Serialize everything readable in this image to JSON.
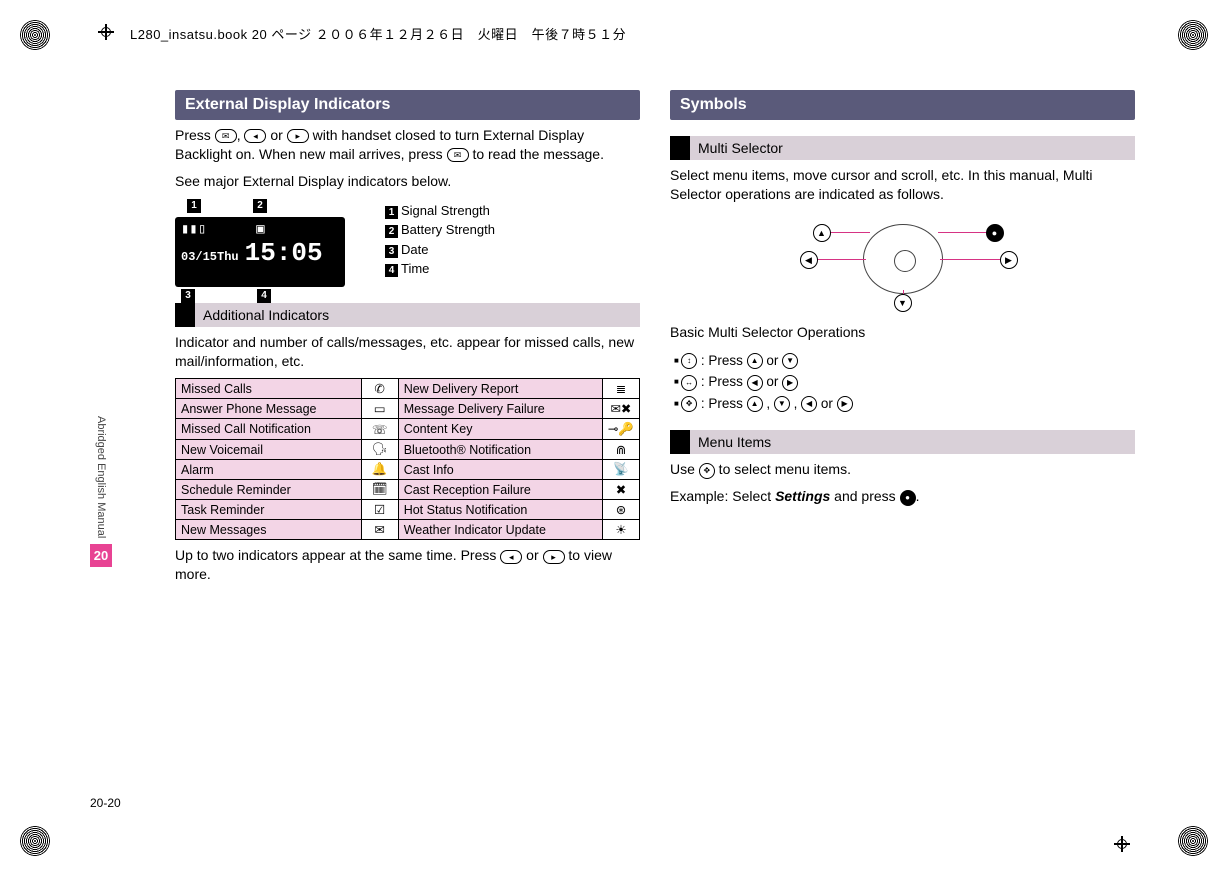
{
  "header_line": "L280_insatsu.book  20 ページ  ２００６年１２月２６日　火曜日　午後７時５１分",
  "side_tab": {
    "label": "Abridged English Manual",
    "chapter": "20"
  },
  "page_number": "20-20",
  "left": {
    "section_title": "External Display Indicators",
    "intro_pre": "Press ",
    "intro_mid1": ", ",
    "intro_mid2": " or ",
    "intro_post": " with handset closed to turn External Display Backlight on. When new mail arrives, press ",
    "intro_end": " to read the message.",
    "see_line": "See major External Display indicators below.",
    "key_mail": "✉",
    "key_left": "◂",
    "key_right": "▸",
    "display": {
      "date": "03/15Thu",
      "time": "15:05",
      "sig_icon": "▮▮▯",
      "batt_icon": "▣"
    },
    "callouts": {
      "c1": "1",
      "c2": "2",
      "c3": "3",
      "c4": "4"
    },
    "legend": [
      {
        "n": "1",
        "t": "Signal Strength"
      },
      {
        "n": "2",
        "t": "Battery Strength"
      },
      {
        "n": "3",
        "t": "Date"
      },
      {
        "n": "4",
        "t": "Time"
      }
    ],
    "subhead1": "Additional Indicators",
    "add_text": "Indicator and number of calls/messages, etc. appear for missed calls, new mail/information, etc.",
    "table_rows": [
      {
        "l": "Missed Calls",
        "li": "✆",
        "r": "New Delivery Report",
        "ri": "≣"
      },
      {
        "l": "Answer Phone Message",
        "li": "▭",
        "r": "Message Delivery Failure",
        "ri": "✉✖"
      },
      {
        "l": "Missed Call Notification",
        "li": "☏",
        "r": "Content Key",
        "ri": "⊸🔑"
      },
      {
        "l": "New Voicemail",
        "li": "🗣",
        "r": "Bluetooth® Notification",
        "ri": "⋒"
      },
      {
        "l": "Alarm",
        "li": "🔔",
        "r": "Cast Info",
        "ri": "📡"
      },
      {
        "l": "Schedule Reminder",
        "li": "🗓",
        "r": "Cast Reception Failure",
        "ri": "✖"
      },
      {
        "l": "Task Reminder",
        "li": "☑",
        "r": "Hot Status Notification",
        "ri": "⊛"
      },
      {
        "l": "New Messages",
        "li": "✉",
        "r": "Weather Indicator Update",
        "ri": "☀"
      }
    ],
    "table_footer_pre": "Up to two indicators appear at the same time. Press ",
    "table_footer_mid": " or ",
    "table_footer_post": " to view more."
  },
  "right": {
    "section_title": "Symbols",
    "sub_multi": "Multi Selector",
    "multi_text": "Select menu items, move cursor and scroll, etc. In this manual, Multi Selector operations are indicated as follows.",
    "basic_title": "Basic Multi Selector Operations",
    "ops": [
      {
        "sym": "↕",
        "desc_pre": " : Press ",
        "a": "▲",
        "mid": " or ",
        "b": "▼"
      },
      {
        "sym": "↔",
        "desc_pre": " : Press ",
        "a": "◀",
        "mid": " or ",
        "b": "▶"
      },
      {
        "sym": "✥",
        "desc_pre": " : Press ",
        "a": "▲",
        "b": "▼",
        "c": "◀",
        "d": "▶"
      }
    ],
    "sub_menu": "Menu Items",
    "menu_line_pre": "Use ",
    "menu_sym": "✥",
    "menu_line_post": " to select menu items.",
    "example_pre": "Example: Select ",
    "example_item": "Settings",
    "example_post": " and press ",
    "center_sym": "●",
    "period": "."
  },
  "colors": {
    "section_bar": "#5a5a7a",
    "subhead_bar": "#d9d0d8",
    "table_label_bg": "#f3d5e6",
    "accent": "#e84393",
    "line": "#d63384"
  }
}
